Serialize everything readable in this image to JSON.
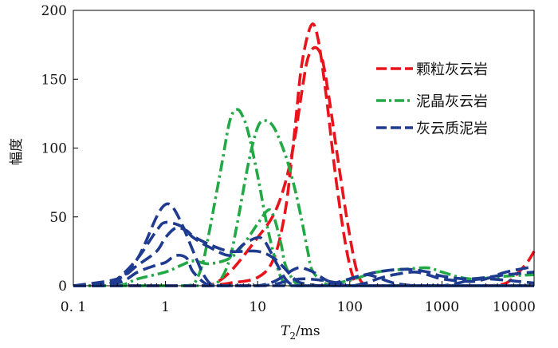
{
  "chart_data": {
    "type": "line",
    "title": "",
    "xlabel": "T",
    "xlabel_sub": "2",
    "xlabel_unit": "/ms",
    "ylabel": "幅度",
    "xscale": "log",
    "xlim": [
      0.1,
      10000
    ],
    "ylim": [
      0,
      200
    ],
    "x_ticks": [
      0.1,
      1,
      10,
      100,
      1000,
      10000
    ],
    "x_tick_labels": [
      "0. 1",
      "1",
      "10",
      "100",
      "1000",
      "10000"
    ],
    "y_ticks": [
      0,
      50,
      100,
      150,
      200
    ],
    "y_tick_labels": [
      "0",
      "50",
      "100",
      "150",
      "200"
    ],
    "grid": false,
    "legend_position": "top-right",
    "legend": [
      {
        "label": "颗粒灰云岩",
        "color": "#e8141c",
        "style": "dash"
      },
      {
        "label": "泥晶灰云岩",
        "color": "#22a845",
        "style": "dashdot"
      },
      {
        "label": "灰云质泥岩",
        "color": "#1f3b8f",
        "style": "dash"
      }
    ],
    "series": [
      {
        "group": 0,
        "color": "#e8141c",
        "style": "dash",
        "x": [
          0.1,
          0.5,
          1,
          2,
          3,
          5,
          10,
          15,
          20,
          25,
          30,
          38,
          45,
          55,
          70,
          90,
          110,
          130,
          200,
          500,
          1000,
          3000,
          10000
        ],
        "y": [
          0,
          0,
          0,
          0,
          0,
          2,
          6,
          20,
          55,
          110,
          160,
          189,
          180,
          140,
          80,
          30,
          5,
          0,
          0,
          0,
          0,
          0,
          0
        ]
      },
      {
        "group": 0,
        "color": "#e8141c",
        "style": "dash",
        "x": [
          0.1,
          0.5,
          1,
          2,
          3,
          5,
          10,
          15,
          20,
          25,
          30,
          35,
          42,
          50,
          60,
          75,
          95,
          120,
          150,
          200,
          500,
          1000,
          3000,
          5000,
          8000,
          10000
        ],
        "y": [
          0,
          0,
          0,
          0,
          0,
          10,
          35,
          52,
          75,
          105,
          140,
          165,
          173,
          165,
          135,
          90,
          45,
          10,
          0,
          0,
          0,
          0,
          0,
          2,
          15,
          25
        ]
      },
      {
        "group": 1,
        "color": "#22a845",
        "style": "dashdot",
        "x": [
          0.1,
          0.5,
          1,
          1.5,
          2,
          2.5,
          3,
          4,
          5,
          6,
          7,
          8,
          10,
          13,
          17,
          20,
          25,
          40,
          100,
          1000,
          10000
        ],
        "y": [
          0,
          0,
          0,
          0,
          1,
          15,
          40,
          85,
          120,
          128,
          122,
          110,
          80,
          40,
          10,
          2,
          0,
          0,
          0,
          0,
          0
        ]
      },
      {
        "group": 1,
        "color": "#22a845",
        "style": "dashdot",
        "x": [
          0.1,
          0.5,
          1,
          2,
          3,
          4,
          5,
          6,
          8,
          10,
          12,
          15,
          20,
          25,
          30,
          35,
          40,
          60,
          100,
          1000,
          10000
        ],
        "y": [
          0,
          0,
          0,
          0,
          0,
          5,
          20,
          45,
          90,
          115,
          120,
          115,
          95,
          72,
          48,
          25,
          10,
          0,
          0,
          0,
          0
        ]
      },
      {
        "group": 1,
        "color": "#22a845",
        "style": "dashdot",
        "x": [
          0.1,
          0.3,
          0.5,
          1,
          1.5,
          2,
          3,
          5,
          7,
          10,
          13,
          15,
          18,
          20,
          25,
          30,
          50,
          100,
          200,
          400,
          700,
          1000,
          2000,
          5000,
          10000
        ],
        "y": [
          0,
          0,
          5,
          10,
          15,
          18,
          16,
          20,
          30,
          45,
          55,
          50,
          30,
          15,
          3,
          0,
          0,
          4,
          10,
          12,
          13,
          10,
          5,
          7,
          8
        ]
      },
      {
        "group": 2,
        "color": "#1f3b8f",
        "style": "dash",
        "x": [
          0.1,
          0.2,
          0.3,
          0.5,
          0.8,
          1,
          1.2,
          1.5,
          2,
          2.5,
          3,
          3.5,
          4,
          5,
          8,
          10,
          20,
          30,
          50,
          100,
          200,
          500,
          1000,
          3000,
          10000
        ],
        "y": [
          0,
          0,
          3,
          20,
          50,
          59,
          57,
          45,
          25,
          10,
          2,
          0,
          0,
          0,
          0,
          0,
          0,
          0,
          0,
          0,
          0,
          0,
          0,
          0,
          0
        ]
      },
      {
        "group": 2,
        "color": "#1f3b8f",
        "style": "dash",
        "x": [
          0.1,
          0.2,
          0.3,
          0.5,
          0.8,
          1,
          1.5,
          2,
          3,
          5,
          7,
          10,
          12,
          15,
          20,
          25,
          30,
          40,
          60,
          100,
          200,
          500,
          1000,
          3000,
          10000
        ],
        "y": [
          0,
          0,
          5,
          20,
          40,
          46,
          43,
          35,
          28,
          22,
          30,
          35,
          32,
          20,
          5,
          0,
          0,
          0,
          0,
          0,
          0,
          0,
          0,
          0,
          0
        ]
      },
      {
        "group": 2,
        "color": "#1f3b8f",
        "style": "dash",
        "x": [
          0.1,
          0.3,
          0.5,
          0.8,
          1,
          1.3,
          1.7,
          2,
          3,
          5,
          10,
          15,
          20,
          25,
          30,
          50,
          100,
          200,
          400,
          700,
          1000,
          2000,
          5000,
          10000
        ],
        "y": [
          0,
          5,
          15,
          25,
          35,
          42,
          40,
          36,
          30,
          25,
          25,
          20,
          12,
          5,
          2,
          0,
          5,
          10,
          12,
          10,
          7,
          5,
          8,
          10
        ]
      },
      {
        "group": 2,
        "color": "#1f3b8f",
        "style": "dash",
        "x": [
          0.1,
          0.3,
          0.5,
          0.8,
          1,
          1.3,
          1.7,
          2,
          3,
          5,
          10,
          15,
          20,
          25,
          30,
          40,
          60,
          100,
          150,
          200,
          300,
          500,
          700,
          1000,
          2000,
          3000,
          5000,
          10000
        ],
        "y": [
          0,
          2,
          10,
          15,
          17,
          22,
          20,
          10,
          0,
          0,
          0,
          3,
          8,
          12,
          13,
          10,
          3,
          0,
          2,
          5,
          8,
          10,
          8,
          5,
          3,
          5,
          10,
          14
        ]
      },
      {
        "group": 2,
        "color": "#1f3b8f",
        "style": "dash",
        "x": [
          0.1,
          1,
          5,
          10,
          15,
          20,
          30,
          50,
          80,
          100,
          150,
          200,
          300,
          500,
          700,
          1000,
          1500,
          2000,
          3000,
          5000,
          7000,
          10000
        ],
        "y": [
          0,
          0,
          0,
          0,
          1,
          3,
          5,
          4,
          2,
          5,
          8,
          6,
          2,
          0,
          0,
          0,
          2,
          4,
          5,
          4,
          3,
          2
        ]
      }
    ]
  }
}
